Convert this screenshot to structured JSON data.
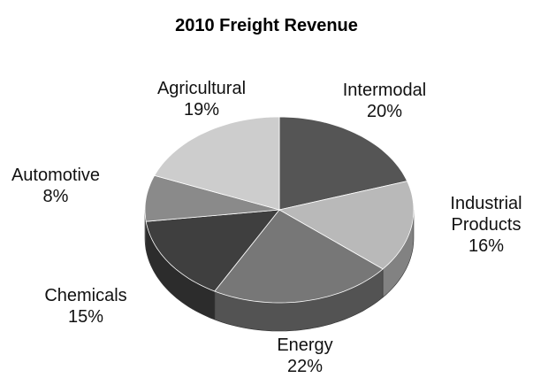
{
  "chart_data": {
    "type": "pie",
    "title": "2010 Freight Revenue",
    "categories": [
      "Intermodal",
      "Industrial Products",
      "Energy",
      "Chemicals",
      "Automotive",
      "Agricultural"
    ],
    "values": [
      20,
      16,
      22,
      15,
      8,
      19
    ],
    "value_labels": [
      "20%",
      "16%",
      "22%",
      "15%",
      "8%",
      "19%"
    ],
    "colors": [
      "#555555",
      "#b9b9b9",
      "#777777",
      "#3f3f3f",
      "#8a8a8a",
      "#cdcdcd"
    ]
  }
}
